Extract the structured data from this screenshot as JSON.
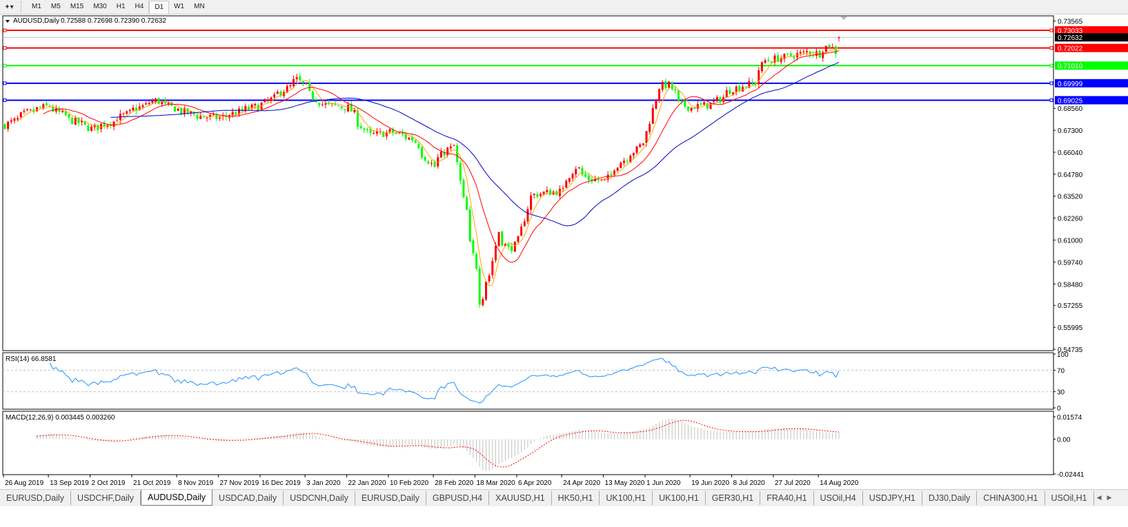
{
  "toolbar": {
    "tool_icon": "line-tools-icon",
    "timeframes": [
      "M1",
      "M5",
      "M15",
      "M30",
      "H1",
      "H4",
      "D1",
      "W1",
      "MN"
    ],
    "active_timeframe": "D1"
  },
  "chart_header": {
    "symbol": "AUDUSD,Daily",
    "ohlc": "0.72588 0.72698 0.72390 0.72632"
  },
  "colors": {
    "bull_candle": "#ff0000",
    "bear_candle": "#00ff00",
    "ma_fast": "#ffa500",
    "ma_mid": "#ff0000",
    "ma_slow": "#0000c8",
    "rsi_line": "#1e90ff",
    "macd_signal": "#ff0000",
    "macd_hist": "#c0c0c0"
  },
  "horizontal_lines": [
    {
      "price": "0.73033",
      "color": "#ff0000"
    },
    {
      "price": "0.72022",
      "color": "#ff0000"
    },
    {
      "price": "0.71010",
      "color": "#00ff00"
    },
    {
      "price": "0.69999",
      "color": "#0000ff"
    },
    {
      "price": "0.69025",
      "color": "#0000ff"
    }
  ],
  "current_price": "0.72632",
  "price_axis": [
    "0.73565",
    "0.68560",
    "0.67300",
    "0.66040",
    "0.64780",
    "0.63520",
    "0.62260",
    "0.61000",
    "0.59740",
    "0.58480",
    "0.57255",
    "0.55995",
    "0.54735"
  ],
  "rsi": {
    "label": "RSI(14) 66.8581",
    "axis": [
      "100",
      "70",
      "30",
      "0"
    ],
    "levels": [
      70,
      30
    ]
  },
  "macd": {
    "label": "MACD(12,26,9) 0.003445 0.003260",
    "axis": [
      "0.01574",
      "0.00",
      "-0.02441"
    ]
  },
  "date_axis": [
    "26 Aug 2019",
    "13 Sep 2019",
    "2 Oct 2019",
    "21 Oct 2019",
    "8 Nov 2019",
    "27 Nov 2019",
    "16 Dec 2019",
    "3 Jan 2020",
    "22 Jan 2020",
    "10 Feb 2020",
    "28 Feb 2020",
    "18 Mar 2020",
    "6 Apr 2020",
    "24 Apr 2020",
    "13 May 2020",
    "1 Jun 2020",
    "19 Jun 2020",
    "8 Jul 2020",
    "27 Jul 2020",
    "14 Aug 2020"
  ],
  "chart_data": {
    "type": "candlestick",
    "symbol": "AUDUSD",
    "timeframe": "Daily",
    "ylim": [
      0.54735,
      0.73565
    ],
    "last_bar": {
      "open": 0.72588,
      "high": 0.72698,
      "low": 0.7239,
      "close": 0.72632
    },
    "approx_close_path": [
      [
        "2019-08-26",
        0.676
      ],
      [
        "2019-09-04",
        0.683
      ],
      [
        "2019-09-13",
        0.687
      ],
      [
        "2019-09-23",
        0.679
      ],
      [
        "2019-10-02",
        0.674
      ],
      [
        "2019-10-11",
        0.678
      ],
      [
        "2019-10-21",
        0.685
      ],
      [
        "2019-10-30",
        0.69
      ],
      [
        "2019-11-08",
        0.685
      ],
      [
        "2019-11-18",
        0.681
      ],
      [
        "2019-11-27",
        0.68
      ],
      [
        "2019-12-06",
        0.684
      ],
      [
        "2019-12-16",
        0.688
      ],
      [
        "2019-12-25",
        0.696
      ],
      [
        "2019-12-31",
        0.702
      ],
      [
        "2020-01-03",
        0.698
      ],
      [
        "2020-01-10",
        0.688
      ],
      [
        "2020-01-22",
        0.686
      ],
      [
        "2020-01-31",
        0.67
      ],
      [
        "2020-02-10",
        0.672
      ],
      [
        "2020-02-19",
        0.668
      ],
      [
        "2020-02-28",
        0.652
      ],
      [
        "2020-03-05",
        0.662
      ],
      [
        "2020-03-09",
        0.664
      ],
      [
        "2020-03-12",
        0.633
      ],
      [
        "2020-03-18",
        0.595
      ],
      [
        "2020-03-19",
        0.575
      ],
      [
        "2020-03-24",
        0.59
      ],
      [
        "2020-03-27",
        0.615
      ],
      [
        "2020-04-01",
        0.605
      ],
      [
        "2020-04-06",
        0.61
      ],
      [
        "2020-04-10",
        0.635
      ],
      [
        "2020-04-16",
        0.637
      ],
      [
        "2020-04-24",
        0.638
      ],
      [
        "2020-04-30",
        0.652
      ],
      [
        "2020-05-06",
        0.645
      ],
      [
        "2020-05-13",
        0.644
      ],
      [
        "2020-05-20",
        0.655
      ],
      [
        "2020-05-27",
        0.662
      ],
      [
        "2020-06-01",
        0.672
      ],
      [
        "2020-06-05",
        0.698
      ],
      [
        "2020-06-10",
        0.699
      ],
      [
        "2020-06-15",
        0.688
      ],
      [
        "2020-06-19",
        0.686
      ],
      [
        "2020-06-29",
        0.688
      ],
      [
        "2020-07-08",
        0.697
      ],
      [
        "2020-07-17",
        0.7
      ],
      [
        "2020-07-22",
        0.713
      ],
      [
        "2020-07-27",
        0.714
      ],
      [
        "2020-08-03",
        0.716
      ],
      [
        "2020-08-10",
        0.718
      ],
      [
        "2020-08-14",
        0.717
      ],
      [
        "2020-08-19",
        0.722
      ],
      [
        "2020-08-21",
        0.718
      ],
      [
        "2020-08-24",
        0.72632
      ]
    ],
    "moving_averages": [
      "fast",
      "mid",
      "slow"
    ]
  },
  "tabs": {
    "items": [
      "EURUSD,Daily",
      "USDCHF,Daily",
      "AUDUSD,Daily",
      "USDCAD,Daily",
      "USDCNH,Daily",
      "EURUSD,Daily",
      "GBPUSD,H4",
      "XAUUSD,H1",
      "HK50,H1",
      "UK100,H1",
      "UK100,H1",
      "GER30,H1",
      "FRA40,H1",
      "USOil,H4",
      "USDJPY,H1",
      "DJ30,Daily",
      "CHINA300,H1",
      "USOil,H1"
    ],
    "active": "AUDUSD,Daily"
  }
}
